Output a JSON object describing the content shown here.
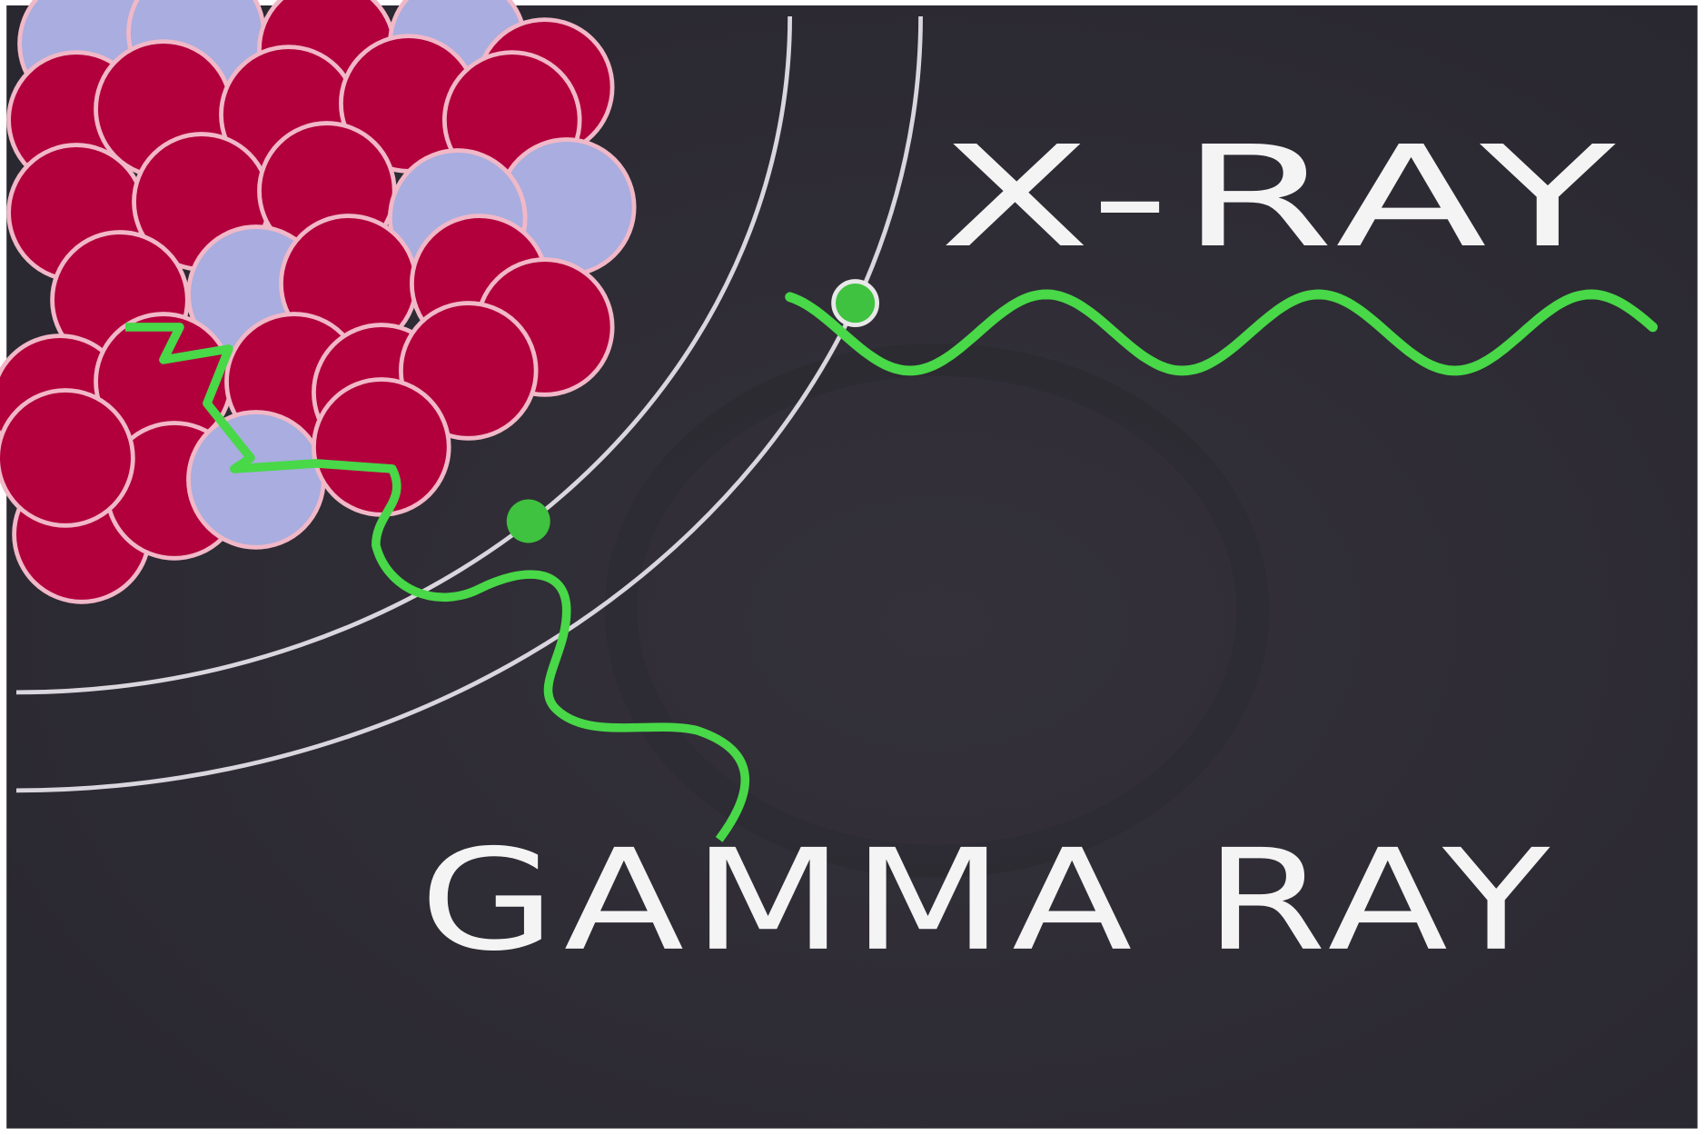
{
  "labels": {
    "xray": "X-RAY",
    "gamma": "GAMMA RAY"
  }
}
